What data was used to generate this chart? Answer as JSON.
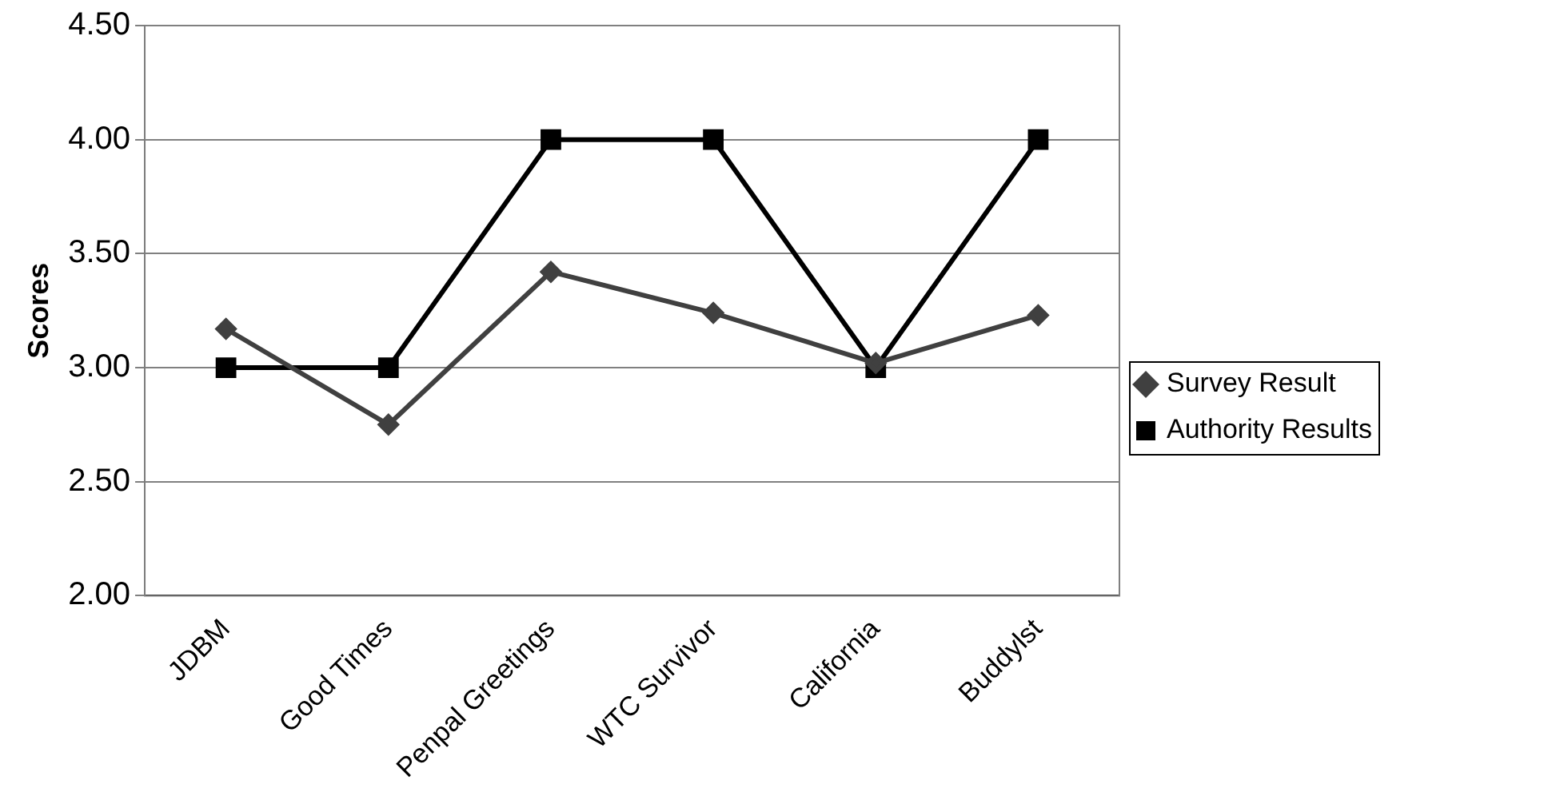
{
  "chart_data": {
    "type": "line",
    "ylabel": "Scores",
    "categories": [
      "JDBM",
      "Good Times",
      "Penpal Greetings",
      "WTC Survivor",
      "California",
      "Buddylst"
    ],
    "series": [
      {
        "name": "Survey Result",
        "color": "#404040",
        "marker": "diamond",
        "values": [
          3.17,
          2.75,
          3.42,
          3.24,
          3.02,
          3.23
        ]
      },
      {
        "name": "Authority Results",
        "color": "#000000",
        "marker": "square",
        "values": [
          3.0,
          3.0,
          4.0,
          4.0,
          3.0,
          4.0
        ]
      }
    ],
    "ylim": [
      2.0,
      4.5
    ],
    "yticks": [
      {
        "value": 2,
        "label": "2.00"
      },
      {
        "value": 2.5,
        "label": "2.50"
      },
      {
        "value": 3,
        "label": "3.00"
      },
      {
        "value": 3.5,
        "label": "3.50"
      },
      {
        "value": 4,
        "label": "4.00"
      },
      {
        "value": 4.5,
        "label": "4.50"
      }
    ],
    "grid": "y",
    "legend": "right",
    "line_style": "solid"
  }
}
